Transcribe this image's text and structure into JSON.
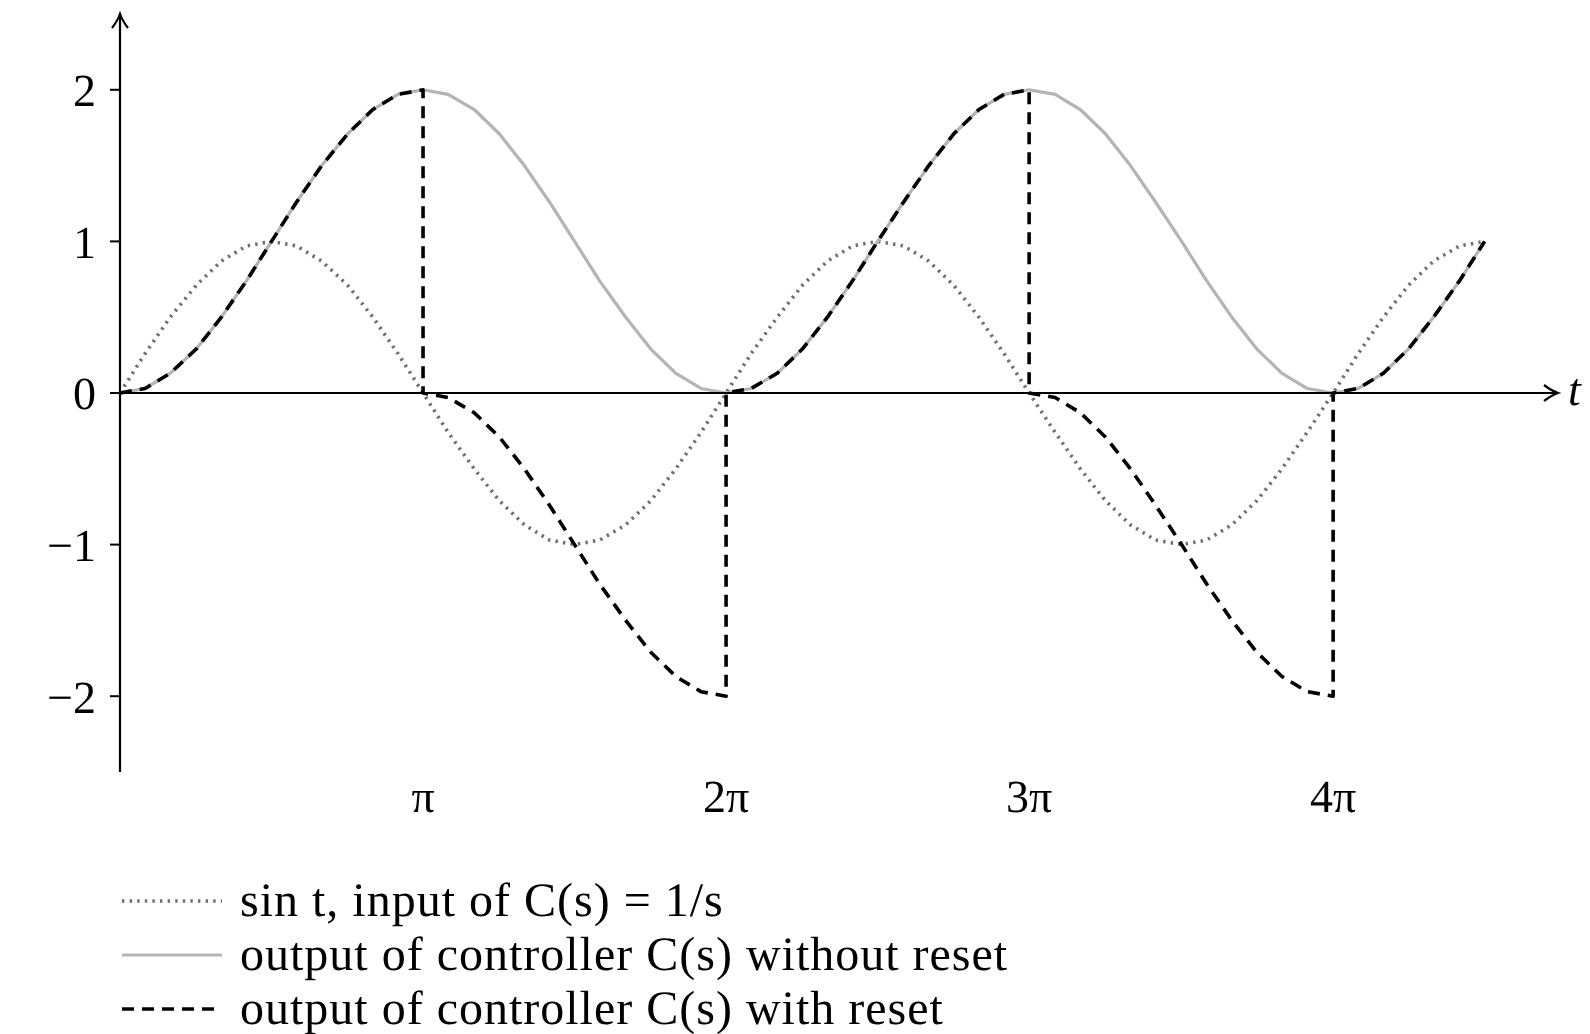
{
  "chart_data": {
    "type": "line",
    "xlabel": "t",
    "xlim": [
      0,
      14.9
    ],
    "xticks": [
      {
        "value": 3.14,
        "label": "π"
      },
      {
        "value": 6.28,
        "label": "2π"
      },
      {
        "value": 9.42,
        "label": "3π"
      },
      {
        "value": 12.57,
        "label": "4π"
      }
    ],
    "ylim": [
      -2.5,
      2.5
    ],
    "yticks": [
      -2,
      -1,
      0,
      1,
      2
    ],
    "legend": "bottom",
    "marker": "none",
    "x": [
      0,
      0.26,
      0.52,
      0.79,
      1.05,
      1.31,
      1.57,
      1.83,
      2.09,
      2.36,
      2.62,
      2.88,
      3.14,
      3.4,
      3.67,
      3.93,
      4.19,
      4.45,
      4.71,
      4.97,
      5.24,
      5.5,
      5.76,
      6.02,
      6.28,
      6.54,
      6.81,
      7.07,
      7.33,
      7.59,
      7.85,
      8.12,
      8.38,
      8.64,
      8.9,
      9.16,
      9.42,
      9.69,
      9.95,
      10.21,
      10.47,
      10.73,
      11,
      11.26,
      11.52,
      11.78,
      12.04,
      12.3,
      12.57,
      12.83,
      13.09,
      13.35,
      13.61,
      13.88,
      14.14
    ],
    "series": [
      {
        "name": "sin t, input of C(s) = 1/s",
        "color": "#6e6e6e",
        "line_style": "dotted",
        "values": [
          0,
          0.26,
          0.5,
          0.71,
          0.87,
          0.97,
          1,
          0.97,
          0.87,
          0.71,
          0.5,
          0.26,
          0,
          -0.26,
          -0.5,
          -0.71,
          -0.87,
          -0.97,
          -1,
          -0.97,
          -0.87,
          -0.71,
          -0.5,
          -0.26,
          0,
          0.26,
          0.5,
          0.71,
          0.87,
          0.97,
          1,
          0.97,
          0.87,
          0.71,
          0.5,
          0.26,
          0,
          -0.26,
          -0.5,
          -0.71,
          -0.87,
          -0.97,
          -1,
          -0.97,
          -0.87,
          -0.71,
          -0.5,
          -0.26,
          0,
          0.26,
          0.5,
          0.71,
          0.87,
          0.97,
          1
        ]
      },
      {
        "name": "output of controller C(s) without reset",
        "color": "#b4b4b4",
        "line_style": "solid",
        "values": [
          0,
          0.03,
          0.13,
          0.29,
          0.5,
          0.74,
          1,
          1.26,
          1.5,
          1.71,
          1.87,
          1.97,
          2,
          1.97,
          1.87,
          1.71,
          1.5,
          1.26,
          1,
          0.74,
          0.5,
          0.29,
          0.13,
          0.03,
          0,
          0.03,
          0.13,
          0.29,
          0.5,
          0.74,
          1,
          1.26,
          1.5,
          1.71,
          1.87,
          1.97,
          2,
          1.97,
          1.87,
          1.71,
          1.5,
          1.26,
          1,
          0.74,
          0.5,
          0.29,
          0.13,
          0.03,
          0,
          0.03,
          0.13,
          0.29,
          0.5,
          0.74,
          1
        ]
      },
      {
        "name": "output of controller C(s) with reset",
        "color": "#000000",
        "line_style": "dashed",
        "x": [
          0,
          0.26,
          0.52,
          0.79,
          1.05,
          1.31,
          1.57,
          1.83,
          2.09,
          2.36,
          2.62,
          2.88,
          3.14,
          3.14,
          3.4,
          3.67,
          3.93,
          4.19,
          4.45,
          4.71,
          4.97,
          5.24,
          5.5,
          5.76,
          6.02,
          6.28,
          6.28,
          6.54,
          6.81,
          7.07,
          7.33,
          7.59,
          7.85,
          8.12,
          8.38,
          8.64,
          8.9,
          9.16,
          9.42,
          9.42,
          9.69,
          9.95,
          10.21,
          10.47,
          10.73,
          11,
          11.26,
          11.52,
          11.78,
          12.04,
          12.3,
          12.57,
          12.57,
          12.83,
          13.09,
          13.35,
          13.61,
          13.88,
          14.14
        ],
        "values": [
          0,
          0.03,
          0.13,
          0.29,
          0.5,
          0.74,
          1,
          1.26,
          1.5,
          1.71,
          1.87,
          1.97,
          2,
          0,
          -0.03,
          -0.13,
          -0.29,
          -0.5,
          -0.74,
          -1,
          -1.26,
          -1.5,
          -1.71,
          -1.87,
          -1.97,
          -2,
          0,
          0.03,
          0.13,
          0.29,
          0.5,
          0.74,
          1,
          1.26,
          1.5,
          1.71,
          1.87,
          1.97,
          2,
          0,
          -0.03,
          -0.13,
          -0.29,
          -0.5,
          -0.74,
          -1,
          -1.26,
          -1.5,
          -1.71,
          -1.87,
          -1.97,
          -2,
          0,
          0.03,
          0.13,
          0.29,
          0.5,
          0.74,
          1
        ]
      }
    ]
  }
}
